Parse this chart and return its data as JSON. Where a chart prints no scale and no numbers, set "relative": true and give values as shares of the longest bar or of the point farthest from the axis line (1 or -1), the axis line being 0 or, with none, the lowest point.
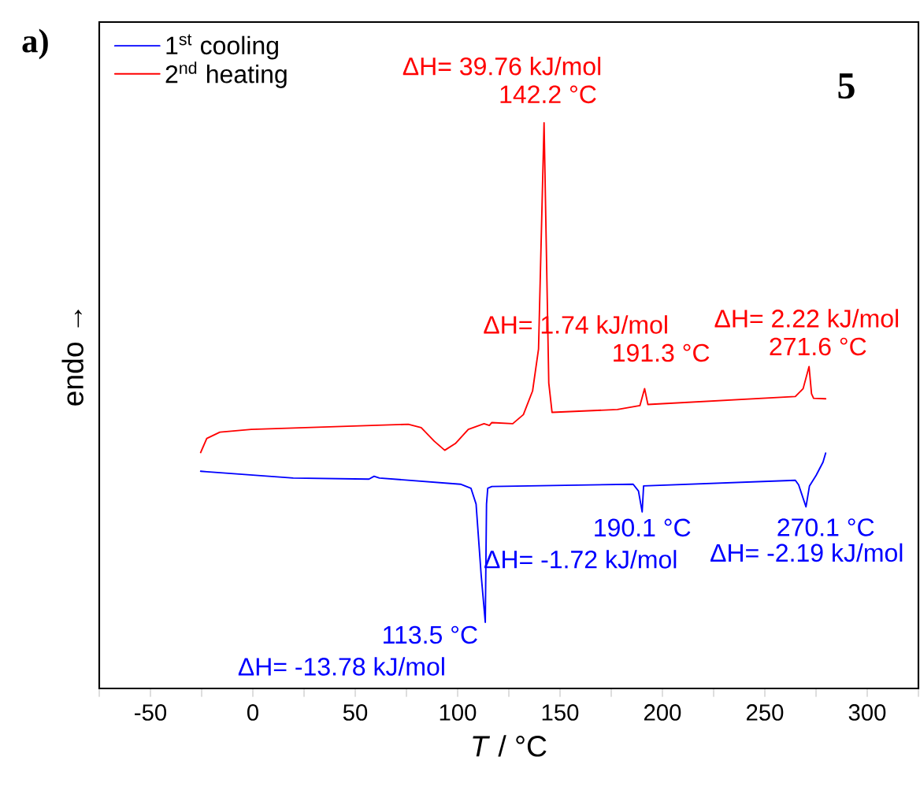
{
  "chart_data": {
    "type": "line",
    "relative": true,
    "xlabel": "*T* / °C",
    "ylabel": "endo →",
    "xlim": [
      -75,
      325
    ],
    "xticks": [
      {
        "value": -75,
        "label": null
      },
      -50,
      {
        "value": -25,
        "label": null
      },
      0,
      {
        "value": 25,
        "label": null
      },
      50,
      {
        "value": 75,
        "label": null
      },
      100,
      {
        "value": 125,
        "label": null
      },
      150,
      {
        "value": 175,
        "label": null
      },
      200,
      {
        "value": 225,
        "label": null
      },
      250,
      {
        "value": 275,
        "label": null
      },
      300,
      {
        "value": 325,
        "label": null
      }
    ],
    "legend": "top left",
    "grid": false,
    "series": [
      {
        "name": "1$^{st}$ cooling",
        "color": "#0000ff",
        "x": [
          -25.5,
          -22.5,
          19.7,
          56.7,
          59.2,
          61.8,
          101.4,
          106.5,
          109,
          111.5,
          113.5,
          114.1,
          114.7,
          116.7,
          185.7,
          188.3,
          190.1,
          190.8,
          264.9,
          266.5,
          270.1,
          271.8,
          275.1,
          278.4,
          279.7
        ],
        "values": [
          0.384,
          0.383,
          0.372,
          0.37,
          0.375,
          0.372,
          0.361,
          0.354,
          0.326,
          0.2,
          0.117,
          0.326,
          0.354,
          0.357,
          0.361,
          0.349,
          0.312,
          0.358,
          0.368,
          0.36,
          0.321,
          0.358,
          0.377,
          0.4,
          0.416
        ]
      },
      {
        "name": "2$^{nd}$ heating",
        "color": "#ff0000",
        "x": [
          -25.5,
          -22.5,
          -16.1,
          -0.8,
          75.9,
          82.2,
          88.6,
          93.7,
          98.9,
          105.2,
          112.9,
          115.5,
          116.7,
          126.9,
          132.1,
          136.6,
          139.5,
          142.2,
          144.5,
          146.1,
          178,
          189,
          191.3,
          192.9,
          264.9,
          268.7,
          271.6,
          272.8,
          273.8,
          279.7
        ],
        "values": [
          0.417,
          0.442,
          0.453,
          0.458,
          0.467,
          0.461,
          0.437,
          0.421,
          0.433,
          0.458,
          0.468,
          0.465,
          0.47,
          0.468,
          0.484,
          0.526,
          0.6,
          1.0,
          0.54,
          0.488,
          0.493,
          0.5,
          0.53,
          0.502,
          0.516,
          0.53,
          0.569,
          0.521,
          0.513,
          0.512
        ]
      }
    ],
    "annotations": [
      {
        "text": "ΔH= 39.76 kJ/mol",
        "x": 142.2,
        "y": 1.0
      },
      {
        "text": "142.2 °C",
        "x": 142.2,
        "y": 1.0
      },
      {
        "text": "ΔH= 1.74 kJ/mol",
        "x": 191.3,
        "y": 0.53
      },
      {
        "text": "191.3 °C",
        "x": 191.3,
        "y": 0.53
      },
      {
        "text": "ΔH= 2.22 kJ/mol",
        "x": 271.6,
        "y": 0.569
      },
      {
        "text": "271.6 °C",
        "x": 271.6,
        "y": 0.569
      },
      {
        "text": "113.5 °C",
        "x": 113.5,
        "y": 0.117
      },
      {
        "text": "ΔH= -13.78 kJ/mol",
        "x": 113.5,
        "y": 0.117
      },
      {
        "text": "190.1 °C",
        "x": 190.1,
        "y": 0.312
      },
      {
        "text": "ΔH= -1.72 kJ/mol",
        "x": 190.1,
        "y": 0.312
      },
      {
        "text": "270.1 °C",
        "x": 270.1,
        "y": 0.321
      },
      {
        "text": "ΔH= -2.19 kJ/mol",
        "x": 270.1,
        "y": 0.321
      },
      "5",
      "a)"
    ]
  }
}
